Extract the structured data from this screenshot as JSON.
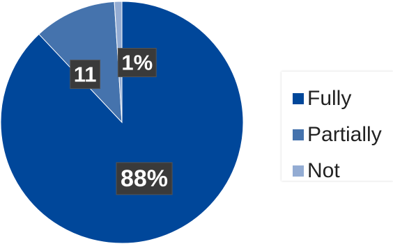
{
  "chart_data": {
    "type": "pie",
    "slices": [
      {
        "name": "Fully",
        "value": 88,
        "label": "88%",
        "color": "#00479a"
      },
      {
        "name": "Partially",
        "value": 11,
        "label": "11",
        "color": "#4573ad"
      },
      {
        "name": "Not",
        "value": 1,
        "label": "1%",
        "color": "#93acd3"
      }
    ],
    "legend": {
      "position": "right",
      "items": [
        "Fully",
        "Partially",
        "Not"
      ]
    }
  }
}
